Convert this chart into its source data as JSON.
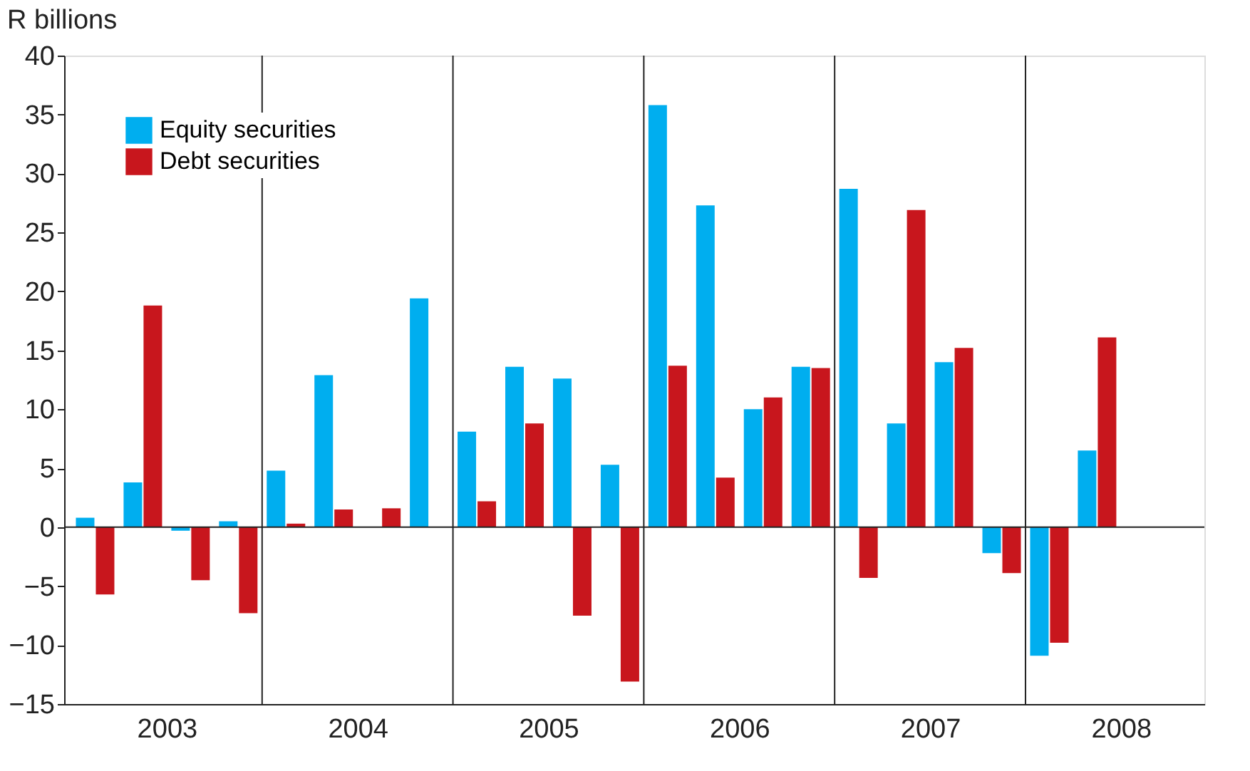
{
  "chart_data": {
    "type": "bar",
    "ylabel": "R billions",
    "x": [
      2003.125,
      2003.375,
      2003.625,
      2003.875,
      2004.125,
      2004.375,
      2004.625,
      2004.875,
      2005.125,
      2005.375,
      2005.625,
      2005.875,
      2006.125,
      2006.375,
      2006.625,
      2006.875,
      2007.125,
      2007.375,
      2007.625,
      2007.875,
      2008.125,
      2008.375
    ],
    "series": [
      {
        "name": "Equity securities",
        "color": "#00aeef",
        "values": [
          0.8,
          3.8,
          -0.3,
          0.5,
          4.8,
          12.9,
          0,
          19.4,
          8.1,
          13.6,
          12.6,
          5.3,
          35.8,
          27.3,
          10,
          13.6,
          28.7,
          8.8,
          14,
          -2.2,
          -10.9,
          6.5
        ]
      },
      {
        "name": "Debt securities",
        "color": "#c8161d",
        "values": [
          -5.7,
          18.8,
          -4.5,
          -7.3,
          0.3,
          1.5,
          1.6,
          0,
          2.2,
          8.8,
          -7.5,
          -13.1,
          13.7,
          4.2,
          11,
          13.5,
          -4.3,
          26.9,
          15.2,
          -3.9,
          -9.8,
          16.1
        ]
      }
    ],
    "xlim": [
      2003,
      2008.9
    ],
    "xticks": [
      {
        "value": 2003.5,
        "label": "2003"
      },
      {
        "value": 2004.5,
        "label": "2004"
      },
      {
        "value": 2005.5,
        "label": "2005"
      },
      {
        "value": 2006.5,
        "label": "2006"
      },
      {
        "value": 2007.5,
        "label": "2007"
      },
      {
        "value": 2008.5,
        "label": "2008"
      }
    ],
    "ylim": [
      -15,
      40
    ],
    "yticks": [
      -15,
      -10,
      -5,
      0,
      5,
      10,
      15,
      20,
      25,
      30,
      35,
      40
    ],
    "ref_lines": [
      {
        "axis": "y",
        "value": 0,
        "label": null
      },
      {
        "axis": "x",
        "value": 2004,
        "label": null
      },
      {
        "axis": "x",
        "value": 2005,
        "label": null
      },
      {
        "axis": "x",
        "value": 2006,
        "label": null
      },
      {
        "axis": "x",
        "value": 2007,
        "label": null
      },
      {
        "axis": "x",
        "value": 2008,
        "label": null
      }
    ],
    "grid": false,
    "legend": "top left"
  }
}
